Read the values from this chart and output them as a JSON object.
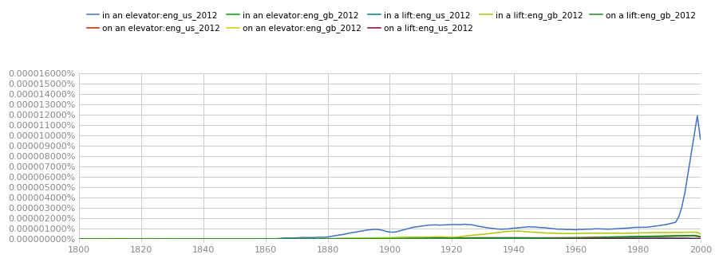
{
  "series": [
    {
      "label": "in an elevator:eng_us_2012",
      "color": "#4472C4",
      "key": "in_elevator_us"
    },
    {
      "label": "on an elevator:eng_us_2012",
      "color": "#CC2200",
      "key": "on_elevator_us"
    },
    {
      "label": "in an elevator:eng_gb_2012",
      "color": "#00AA00",
      "key": "in_elevator_gb"
    },
    {
      "label": "on an elevator:eng_gb_2012",
      "color": "#DDCC00",
      "key": "on_elevator_gb"
    },
    {
      "label": "in a lift:eng_us_2012",
      "color": "#008080",
      "key": "in_lift_us"
    },
    {
      "label": "on a lift:eng_us_2012",
      "color": "#880044",
      "key": "on_lift_us"
    },
    {
      "label": "in a lift:eng_gb_2012",
      "color": "#AACC00",
      "key": "in_lift_gb"
    },
    {
      "label": "on a lift:eng_gb_2012",
      "color": "#228B22",
      "key": "on_lift_gb"
    }
  ],
  "year_start": 1800,
  "year_end": 2000,
  "ylim_max": 1.6e-07,
  "ytick_step": 1e-08,
  "background_color": "#ffffff",
  "grid_color": "#cccccc",
  "legend_fontsize": 7.5,
  "tick_fontsize": 8
}
